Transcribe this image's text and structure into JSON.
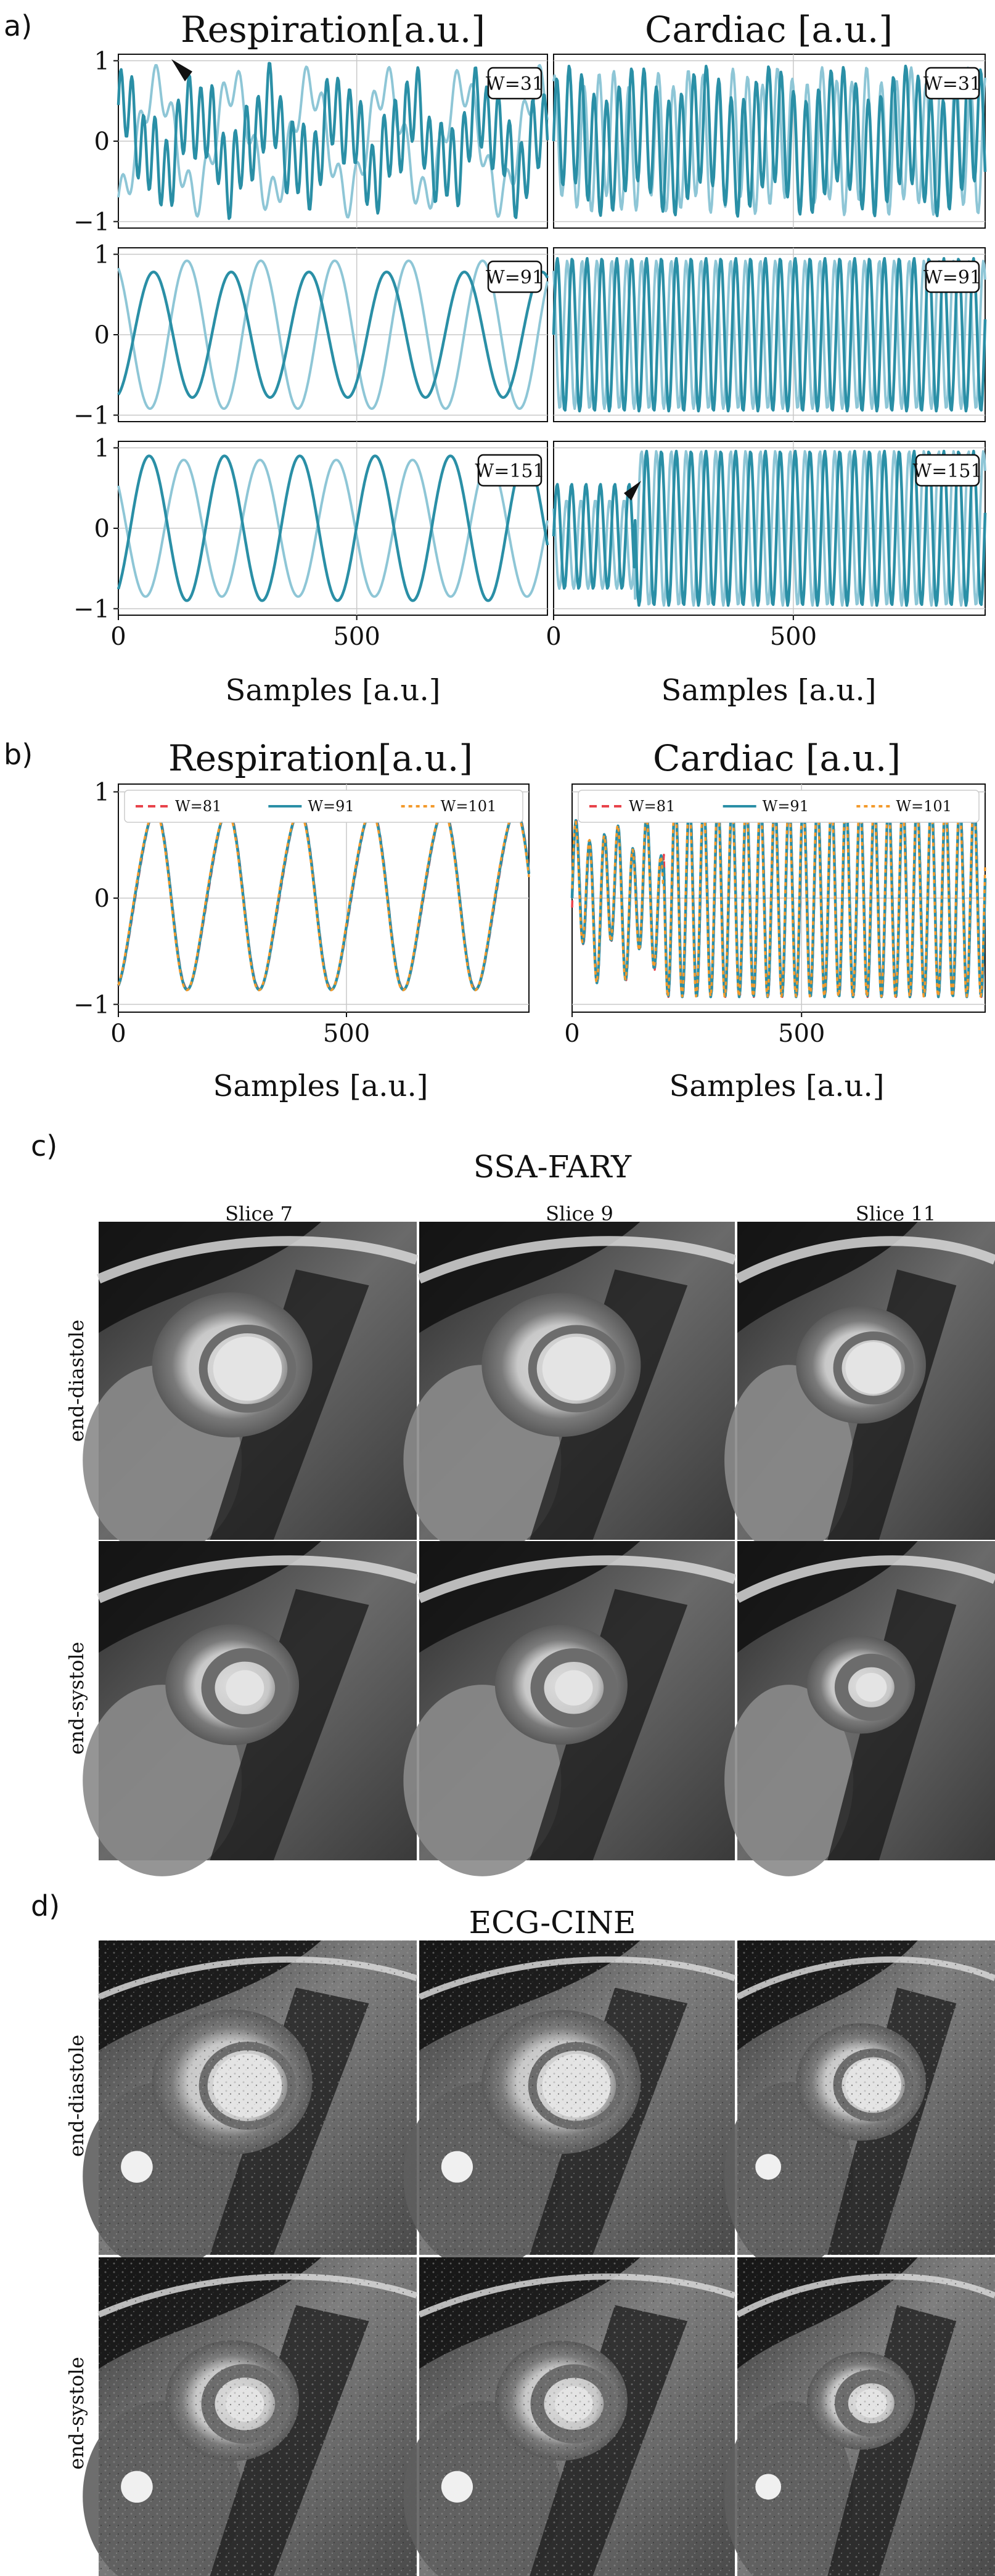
{
  "panel_a": {
    "letter": "a)",
    "titles": [
      "Respiration[a.u.]",
      "Cardiac [a.u.]"
    ],
    "xlabel": "Samples [a.u.]",
    "window_labels": [
      "W=31",
      "W=91",
      "W=151"
    ],
    "ytick_labels": [
      "1",
      "0",
      "−1"
    ],
    "xtick_labels": [
      "0",
      "500"
    ]
  },
  "panel_b": {
    "letter": "b)",
    "titles": [
      "Respiration[a.u.]",
      "Cardiac [a.u.]"
    ],
    "xlabel": "Samples [a.u.]",
    "legend": [
      "W=81",
      "W=91",
      "W=101"
    ],
    "ytick_labels": [
      "1",
      "0",
      "−1"
    ],
    "xtick_labels": [
      "0",
      "500"
    ]
  },
  "panel_c": {
    "letter": "c)",
    "title": "SSA-FARY",
    "columns": [
      "Slice 7",
      "Slice 9",
      "Slice 11"
    ],
    "rows": [
      "end-diastole",
      "end-systole"
    ]
  },
  "panel_d": {
    "letter": "d)",
    "title": "ECG-CINE",
    "rows": [
      "end-diastole",
      "end-systole"
    ]
  },
  "colors": {
    "dark_teal": "#2a8fa6",
    "light_teal": "#8ec6d6",
    "legend_red": "#e8434b",
    "legend_orange": "#f39a2b"
  },
  "chart_data": [
    {
      "type": "line",
      "panel": "a",
      "row_labels": [
        "W=31",
        "W=91",
        "W=151"
      ],
      "columns": [
        "Respiration",
        "Cardiac"
      ],
      "xlim": [
        0,
        900
      ],
      "ylim": [
        -1,
        1
      ],
      "xticks": [
        0,
        500
      ],
      "yticks": [
        -1,
        0,
        1
      ],
      "series": [
        {
          "values": [
            0.2,
            0.7,
            0.5,
            0.8,
            0.2,
            0.4,
            0.0,
            0.6,
            0.3,
            0.1,
            0.7,
            -0.7,
            0.5,
            0.2,
            0.7,
            0.3,
            0.6,
            0.1,
            0.5,
            0.2
          ]
        },
        {
          "values": [
            -0.9,
            -0.6,
            0.4,
            0.9,
            0.6,
            -0.2,
            -0.8,
            -0.9,
            -0.4,
            0.5,
            0.9,
            0.7,
            -0.1,
            -0.7,
            -0.9,
            -0.5,
            0.3,
            0.8,
            0.8,
            0.2
          ]
        }
      ]
    },
    {
      "type": "line",
      "panel": "b",
      "columns": [
        "Respiration",
        "Cardiac"
      ],
      "xlim": [
        0,
        900
      ],
      "ylim": [
        -1,
        1
      ],
      "xticks": [
        0,
        500
      ],
      "yticks": [
        -1,
        0,
        1
      ],
      "series": [
        {
          "name": "W=81",
          "values": [
            -0.55,
            0.8,
            -0.97,
            0.85,
            -0.96,
            0.82,
            -0.95,
            0.78,
            -0.95,
            0.75,
            -0.9
          ]
        },
        {
          "name": "W=91",
          "values": [
            -0.5,
            0.78,
            -0.94,
            0.83,
            -0.93,
            0.8,
            -0.92,
            0.76,
            -0.92,
            0.73,
            -0.88
          ]
        },
        {
          "name": "W=101",
          "values": [
            -0.45,
            0.76,
            -0.92,
            0.81,
            -0.91,
            0.78,
            -0.9,
            0.74,
            -0.9,
            0.71,
            -0.86
          ]
        }
      ]
    }
  ]
}
